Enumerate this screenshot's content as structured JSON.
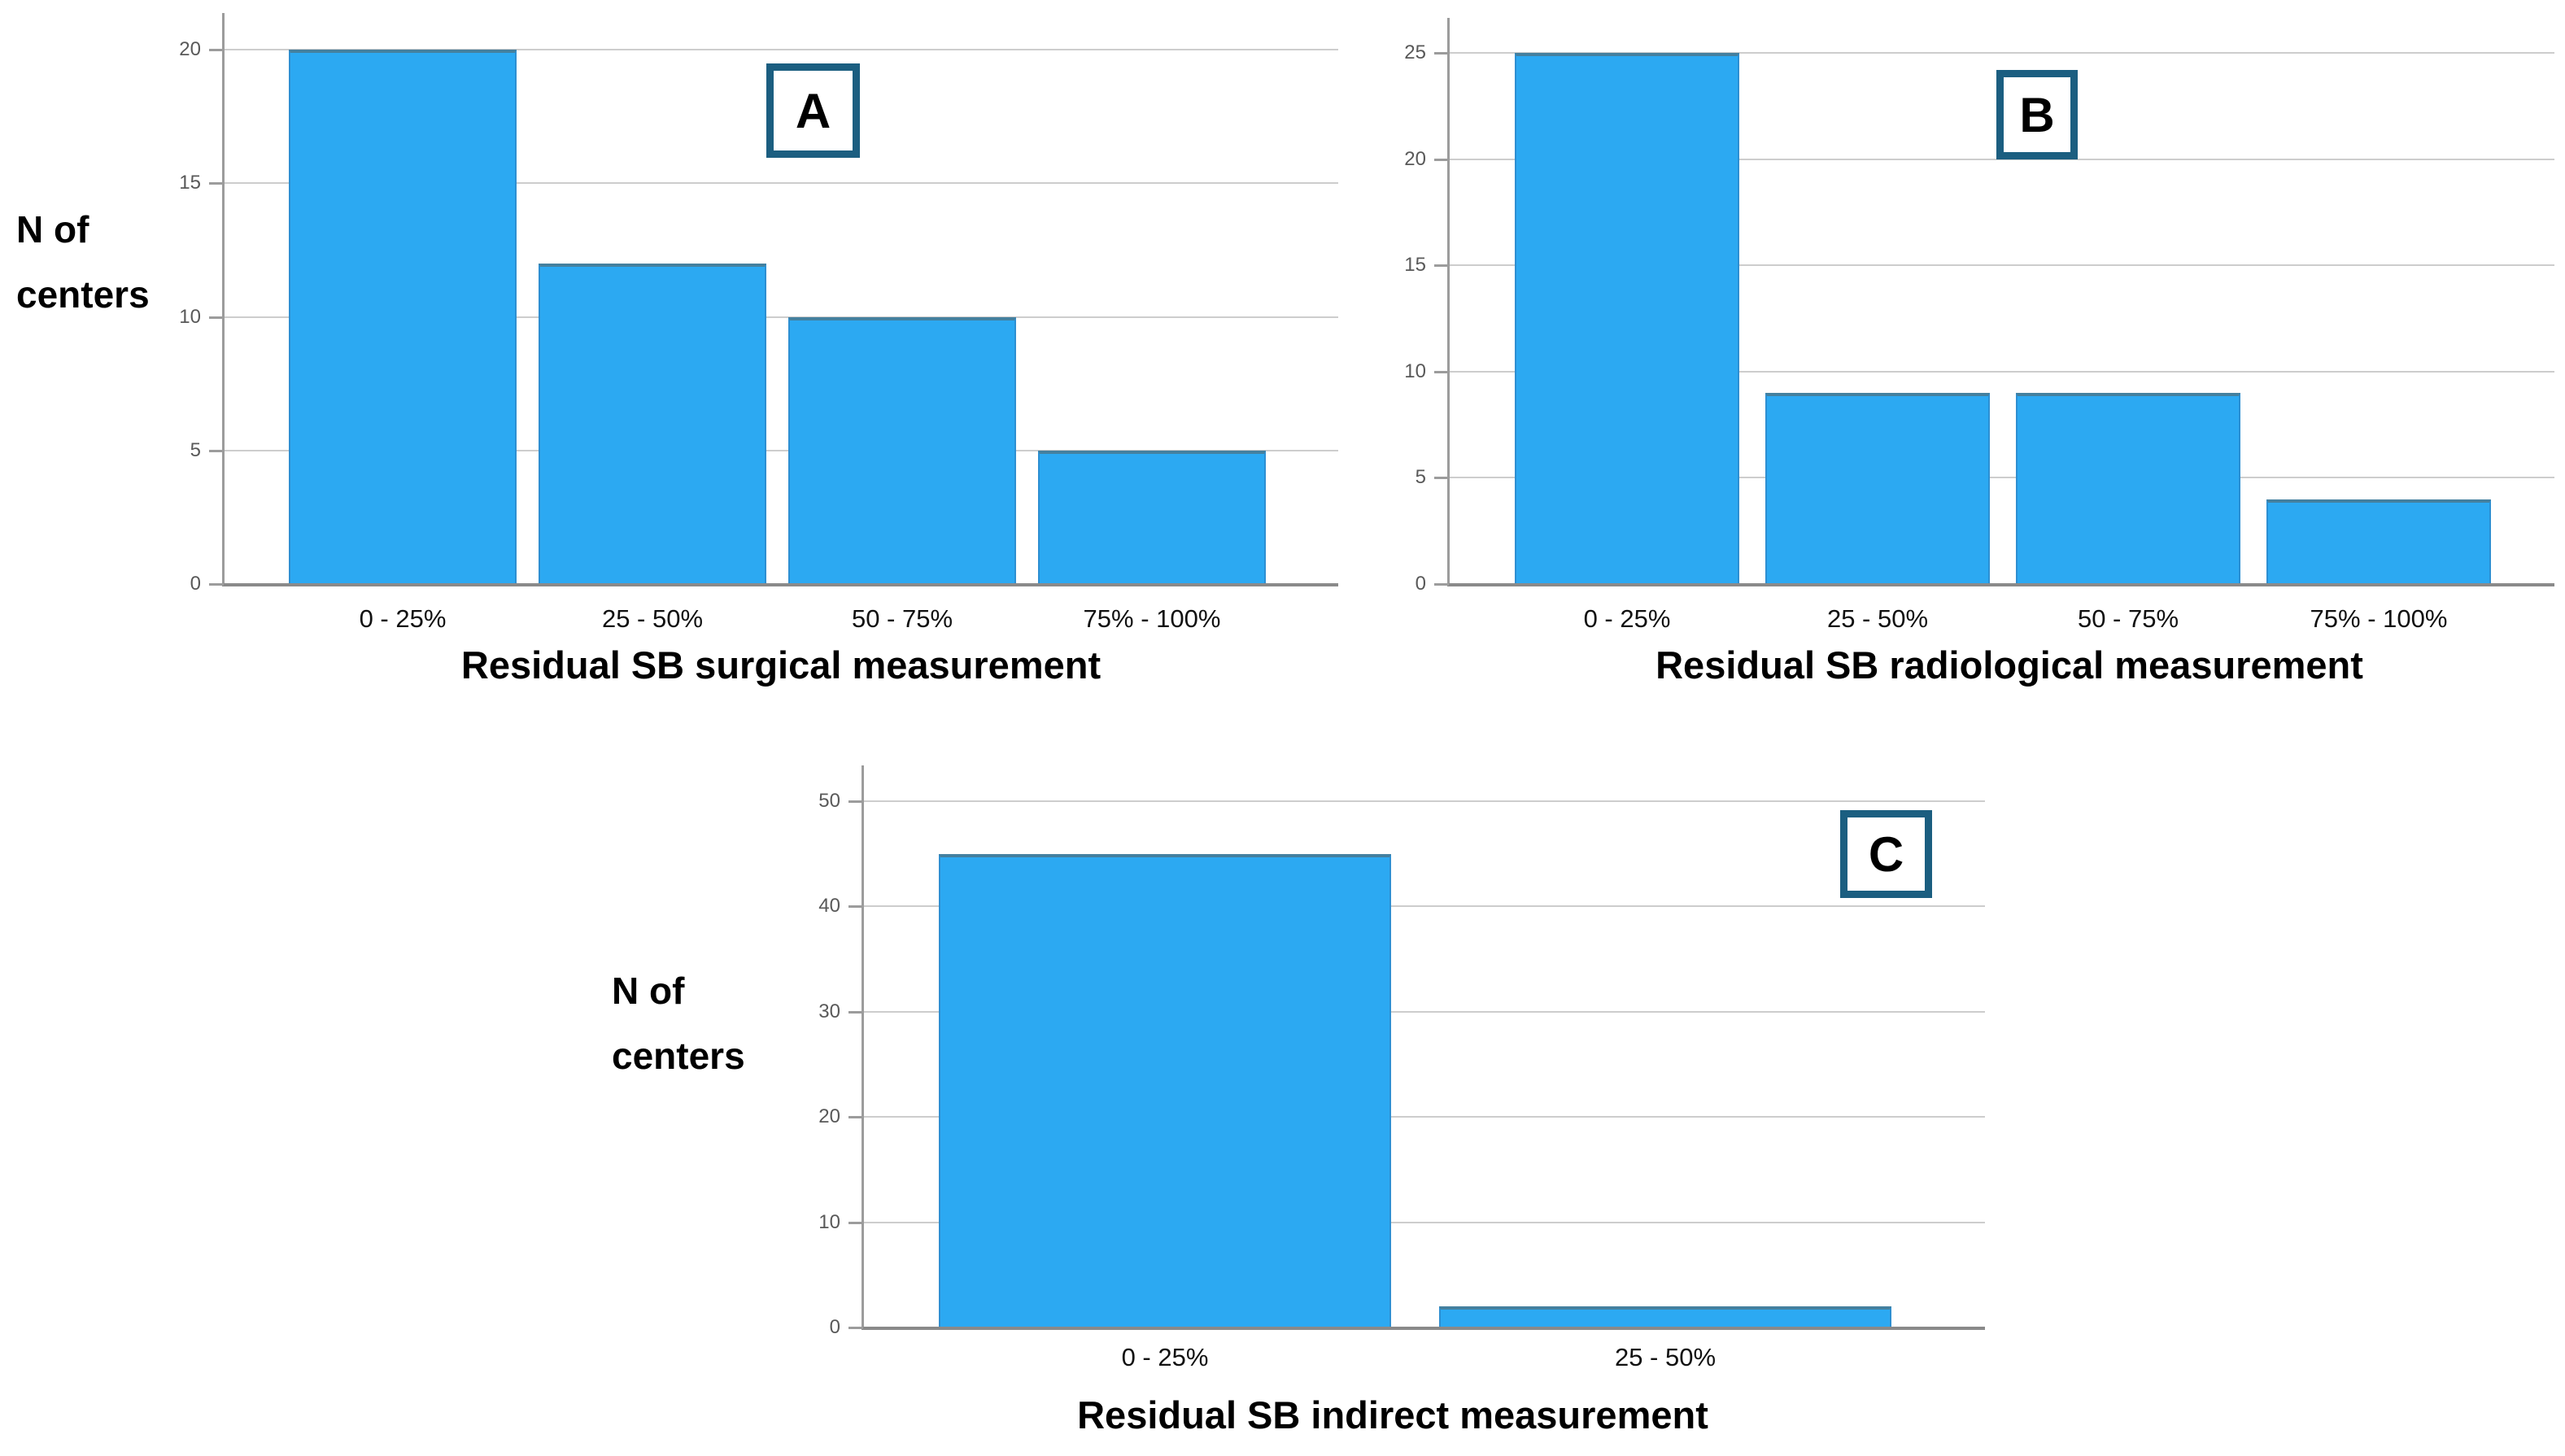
{
  "figure": {
    "description": "Three-panel bar chart figure",
    "panel_letters": [
      "A",
      "B",
      "C"
    ],
    "shared_ylabel": "N of centers"
  },
  "style": {
    "bar_fill": "#2ca9f2",
    "bar_top_edge": "#44809f",
    "bar_side_edge": "#2d8fd2",
    "badge_border": "#1b5e80",
    "gridline_color": "#cdcdcd",
    "axis_color": "#9c9c9c",
    "baseline_color": "#8a8a8a",
    "tick_text_color": "#595959",
    "label_text_color": "#111111",
    "title_text_color": "#000000"
  },
  "chart_data": [
    {
      "type": "bar",
      "panel_letter": "A",
      "title": "Residual SB surgical measurement",
      "ylabel": "N of centers",
      "xlabel": "",
      "categories": [
        "0 - 25%",
        "25 - 50%",
        "50 - 75%",
        "75% - 100%"
      ],
      "values": [
        20,
        12,
        10,
        5
      ],
      "yticks": [
        0,
        5,
        10,
        15,
        20
      ],
      "ylim": [
        0,
        20
      ],
      "grid": true,
      "legend": false
    },
    {
      "type": "bar",
      "panel_letter": "B",
      "title": "Residual SB radiological measurement",
      "ylabel": "",
      "xlabel": "",
      "categories": [
        "0 - 25%",
        "25 - 50%",
        "50 - 75%",
        "75% - 100%"
      ],
      "values": [
        25,
        9,
        9,
        4
      ],
      "yticks": [
        0,
        5,
        10,
        15,
        20,
        25
      ],
      "ylim": [
        0,
        25
      ],
      "grid": true,
      "legend": false
    },
    {
      "type": "bar",
      "panel_letter": "C",
      "title": "Residual SB indirect measurement",
      "ylabel": "N of centers",
      "xlabel": "",
      "categories": [
        "0 - 25%",
        "25 - 50%"
      ],
      "values": [
        45,
        2
      ],
      "yticks": [
        0,
        10,
        20,
        30,
        40,
        50
      ],
      "ylim": [
        0,
        50
      ],
      "grid": true,
      "legend": false
    }
  ]
}
